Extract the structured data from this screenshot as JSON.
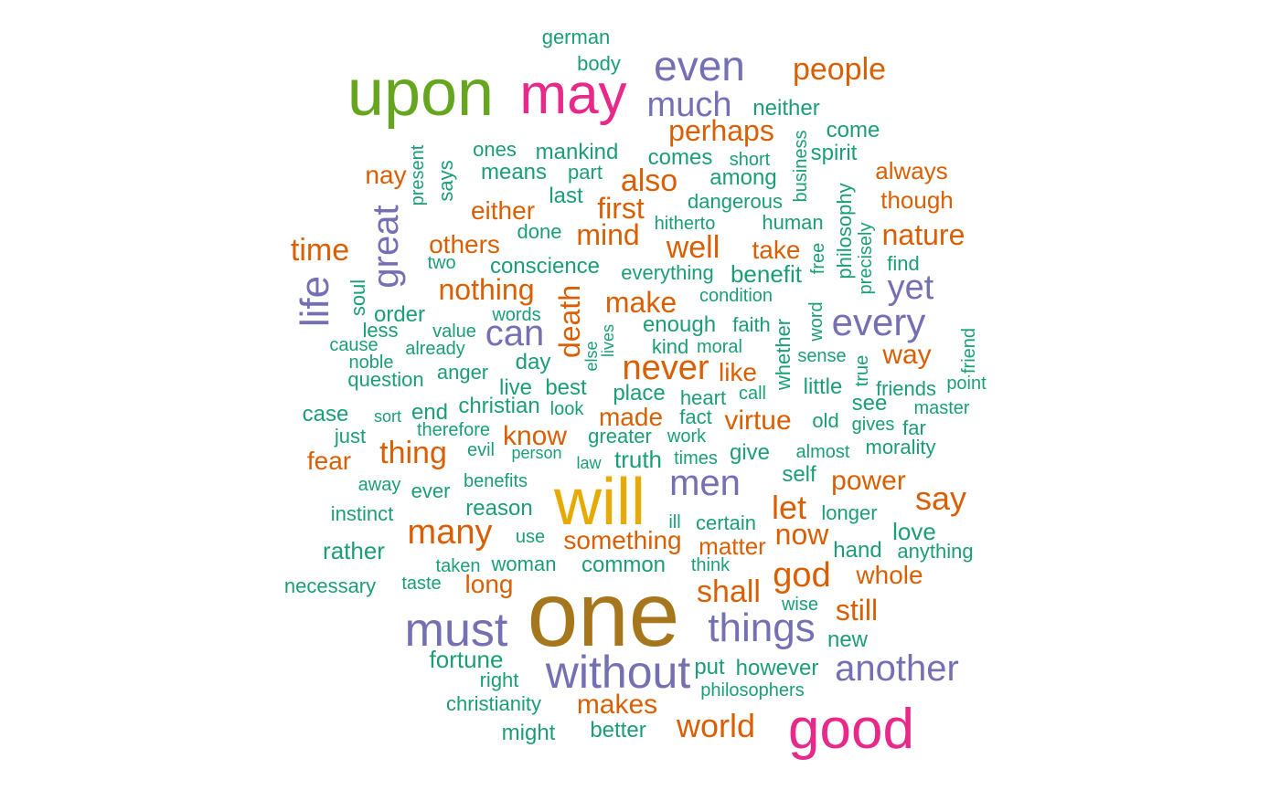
{
  "palette": {
    "green": "#1b9e77",
    "orange": "#d95f02",
    "purple": "#7570b3",
    "magenta": "#e7298a",
    "olive": "#66a61e",
    "gold": "#e6ab02",
    "brown": "#a6761d"
  },
  "words": [
    {
      "text": "german",
      "color": "green",
      "weight": 1,
      "vertical": false
    },
    {
      "text": "body",
      "color": "green",
      "weight": 1,
      "vertical": false
    },
    {
      "text": "even",
      "color": "purple",
      "weight": 4,
      "vertical": false
    },
    {
      "text": "people",
      "color": "orange",
      "weight": 2,
      "vertical": false
    },
    {
      "text": "upon",
      "color": "olive",
      "weight": 6,
      "vertical": false
    },
    {
      "text": "may",
      "color": "magenta",
      "weight": 5,
      "vertical": false
    },
    {
      "text": "much",
      "color": "purple",
      "weight": 3,
      "vertical": false
    },
    {
      "text": "neither",
      "color": "green",
      "weight": 1,
      "vertical": false
    },
    {
      "text": "perhaps",
      "color": "orange",
      "weight": 2,
      "vertical": false
    },
    {
      "text": "come",
      "color": "green",
      "weight": 1,
      "vertical": false
    },
    {
      "text": "ones",
      "color": "green",
      "weight": 1,
      "vertical": false
    },
    {
      "text": "mankind",
      "color": "green",
      "weight": 1,
      "vertical": false
    },
    {
      "text": "comes",
      "color": "green",
      "weight": 1,
      "vertical": false
    },
    {
      "text": "short",
      "color": "green",
      "weight": 1,
      "vertical": false
    },
    {
      "text": "business",
      "color": "green",
      "weight": 1,
      "vertical": true
    },
    {
      "text": "spirit",
      "color": "green",
      "weight": 1,
      "vertical": false
    },
    {
      "text": "nay",
      "color": "orange",
      "weight": 2,
      "vertical": false
    },
    {
      "text": "present",
      "color": "green",
      "weight": 1,
      "vertical": true
    },
    {
      "text": "says",
      "color": "green",
      "weight": 1,
      "vertical": true
    },
    {
      "text": "means",
      "color": "green",
      "weight": 1,
      "vertical": false
    },
    {
      "text": "part",
      "color": "green",
      "weight": 1,
      "vertical": false
    },
    {
      "text": "also",
      "color": "orange",
      "weight": 2,
      "vertical": false
    },
    {
      "text": "among",
      "color": "green",
      "weight": 1,
      "vertical": false
    },
    {
      "text": "always",
      "color": "orange",
      "weight": 2,
      "vertical": false
    },
    {
      "text": "philosophy",
      "color": "green",
      "weight": 1,
      "vertical": true
    },
    {
      "text": "though",
      "color": "orange",
      "weight": 2,
      "vertical": false
    },
    {
      "text": "great",
      "color": "purple",
      "weight": 3,
      "vertical": true
    },
    {
      "text": "either",
      "color": "orange",
      "weight": 2,
      "vertical": false
    },
    {
      "text": "last",
      "color": "green",
      "weight": 1,
      "vertical": false
    },
    {
      "text": "first",
      "color": "orange",
      "weight": 2,
      "vertical": false
    },
    {
      "text": "dangerous",
      "color": "green",
      "weight": 1,
      "vertical": false
    },
    {
      "text": "hitherto",
      "color": "green",
      "weight": 1,
      "vertical": false
    },
    {
      "text": "human",
      "color": "green",
      "weight": 1,
      "vertical": false
    },
    {
      "text": "precisely",
      "color": "green",
      "weight": 1,
      "vertical": true
    },
    {
      "text": "done",
      "color": "green",
      "weight": 1,
      "vertical": false
    },
    {
      "text": "mind",
      "color": "orange",
      "weight": 2,
      "vertical": false
    },
    {
      "text": "nature",
      "color": "orange",
      "weight": 2,
      "vertical": false
    },
    {
      "text": "time",
      "color": "orange",
      "weight": 2,
      "vertical": false
    },
    {
      "text": "others",
      "color": "orange",
      "weight": 2,
      "vertical": false
    },
    {
      "text": "well",
      "color": "orange",
      "weight": 2,
      "vertical": false
    },
    {
      "text": "take",
      "color": "orange",
      "weight": 2,
      "vertical": false
    },
    {
      "text": "free",
      "color": "green",
      "weight": 1,
      "vertical": true
    },
    {
      "text": "two",
      "color": "green",
      "weight": 1,
      "vertical": false
    },
    {
      "text": "conscience",
      "color": "green",
      "weight": 1,
      "vertical": false
    },
    {
      "text": "everything",
      "color": "green",
      "weight": 1,
      "vertical": false
    },
    {
      "text": "benefit",
      "color": "green",
      "weight": 1,
      "vertical": false
    },
    {
      "text": "find",
      "color": "green",
      "weight": 1,
      "vertical": false
    },
    {
      "text": "life",
      "color": "purple",
      "weight": 3,
      "vertical": true
    },
    {
      "text": "soul",
      "color": "green",
      "weight": 1,
      "vertical": true
    },
    {
      "text": "nothing",
      "color": "orange",
      "weight": 2,
      "vertical": false
    },
    {
      "text": "death",
      "color": "orange",
      "weight": 2,
      "vertical": true
    },
    {
      "text": "make",
      "color": "orange",
      "weight": 2,
      "vertical": false
    },
    {
      "text": "condition",
      "color": "green",
      "weight": 1,
      "vertical": false
    },
    {
      "text": "yet",
      "color": "purple",
      "weight": 3,
      "vertical": false
    },
    {
      "text": "order",
      "color": "green",
      "weight": 1,
      "vertical": false
    },
    {
      "text": "words",
      "color": "green",
      "weight": 1,
      "vertical": false
    },
    {
      "text": "enough",
      "color": "green",
      "weight": 1,
      "vertical": false
    },
    {
      "text": "faith",
      "color": "green",
      "weight": 1,
      "vertical": false
    },
    {
      "text": "whether",
      "color": "green",
      "weight": 1,
      "vertical": true
    },
    {
      "text": "word",
      "color": "green",
      "weight": 1,
      "vertical": true
    },
    {
      "text": "every",
      "color": "purple",
      "weight": 3,
      "vertical": false
    },
    {
      "text": "friend",
      "color": "green",
      "weight": 1,
      "vertical": true
    },
    {
      "text": "less",
      "color": "green",
      "weight": 1,
      "vertical": false
    },
    {
      "text": "value",
      "color": "green",
      "weight": 1,
      "vertical": false
    },
    {
      "text": "can",
      "color": "purple",
      "weight": 3,
      "vertical": false
    },
    {
      "text": "else",
      "color": "green",
      "weight": 1,
      "vertical": true
    },
    {
      "text": "lives",
      "color": "green",
      "weight": 1,
      "vertical": true
    },
    {
      "text": "kind",
      "color": "green",
      "weight": 1,
      "vertical": false
    },
    {
      "text": "moral",
      "color": "green",
      "weight": 1,
      "vertical": false
    },
    {
      "text": "sense",
      "color": "green",
      "weight": 1,
      "vertical": false
    },
    {
      "text": "cause",
      "color": "green",
      "weight": 1,
      "vertical": false
    },
    {
      "text": "already",
      "color": "green",
      "weight": 1,
      "vertical": false
    },
    {
      "text": "way",
      "color": "orange",
      "weight": 2,
      "vertical": false
    },
    {
      "text": "noble",
      "color": "green",
      "weight": 1,
      "vertical": false
    },
    {
      "text": "day",
      "color": "green",
      "weight": 1,
      "vertical": false
    },
    {
      "text": "never",
      "color": "orange",
      "weight": 3,
      "vertical": false
    },
    {
      "text": "like",
      "color": "orange",
      "weight": 2,
      "vertical": false
    },
    {
      "text": "true",
      "color": "green",
      "weight": 1,
      "vertical": true
    },
    {
      "text": "question",
      "color": "green",
      "weight": 1,
      "vertical": false
    },
    {
      "text": "anger",
      "color": "green",
      "weight": 1,
      "vertical": false
    },
    {
      "text": "live",
      "color": "green",
      "weight": 1,
      "vertical": false
    },
    {
      "text": "best",
      "color": "green",
      "weight": 1,
      "vertical": false
    },
    {
      "text": "place",
      "color": "green",
      "weight": 1,
      "vertical": false
    },
    {
      "text": "call",
      "color": "green",
      "weight": 1,
      "vertical": false
    },
    {
      "text": "little",
      "color": "green",
      "weight": 1,
      "vertical": false
    },
    {
      "text": "friends",
      "color": "green",
      "weight": 1,
      "vertical": false
    },
    {
      "text": "point",
      "color": "green",
      "weight": 1,
      "vertical": false
    },
    {
      "text": "christian",
      "color": "green",
      "weight": 1,
      "vertical": false
    },
    {
      "text": "look",
      "color": "green",
      "weight": 1,
      "vertical": false
    },
    {
      "text": "heart",
      "color": "green",
      "weight": 1,
      "vertical": false
    },
    {
      "text": "see",
      "color": "green",
      "weight": 1,
      "vertical": false
    },
    {
      "text": "master",
      "color": "green",
      "weight": 1,
      "vertical": false
    },
    {
      "text": "case",
      "color": "green",
      "weight": 1,
      "vertical": false
    },
    {
      "text": "sort",
      "color": "green",
      "weight": 1,
      "vertical": false
    },
    {
      "text": "end",
      "color": "green",
      "weight": 1,
      "vertical": false
    },
    {
      "text": "made",
      "color": "orange",
      "weight": 2,
      "vertical": false
    },
    {
      "text": "fact",
      "color": "green",
      "weight": 1,
      "vertical": false
    },
    {
      "text": "virtue",
      "color": "orange",
      "weight": 2,
      "vertical": false
    },
    {
      "text": "old",
      "color": "green",
      "weight": 1,
      "vertical": false
    },
    {
      "text": "gives",
      "color": "green",
      "weight": 1,
      "vertical": false
    },
    {
      "text": "far",
      "color": "green",
      "weight": 1,
      "vertical": false
    },
    {
      "text": "just",
      "color": "green",
      "weight": 1,
      "vertical": false
    },
    {
      "text": "therefore",
      "color": "green",
      "weight": 1,
      "vertical": false
    },
    {
      "text": "know",
      "color": "orange",
      "weight": 2,
      "vertical": false
    },
    {
      "text": "greater",
      "color": "green",
      "weight": 1,
      "vertical": false
    },
    {
      "text": "work",
      "color": "green",
      "weight": 1,
      "vertical": false
    },
    {
      "text": "morality",
      "color": "green",
      "weight": 1,
      "vertical": false
    },
    {
      "text": "thing",
      "color": "orange",
      "weight": 2,
      "vertical": false
    },
    {
      "text": "evil",
      "color": "green",
      "weight": 1,
      "vertical": false
    },
    {
      "text": "person",
      "color": "green",
      "weight": 1,
      "vertical": false
    },
    {
      "text": "truth",
      "color": "green",
      "weight": 1,
      "vertical": false
    },
    {
      "text": "give",
      "color": "green",
      "weight": 1,
      "vertical": false
    },
    {
      "text": "almost",
      "color": "green",
      "weight": 1,
      "vertical": false
    },
    {
      "text": "fear",
      "color": "orange",
      "weight": 2,
      "vertical": false
    },
    {
      "text": "law",
      "color": "green",
      "weight": 1,
      "vertical": false
    },
    {
      "text": "times",
      "color": "green",
      "weight": 1,
      "vertical": false
    },
    {
      "text": "self",
      "color": "green",
      "weight": 1,
      "vertical": false
    },
    {
      "text": "away",
      "color": "green",
      "weight": 1,
      "vertical": false
    },
    {
      "text": "benefits",
      "color": "green",
      "weight": 1,
      "vertical": false
    },
    {
      "text": "men",
      "color": "purple",
      "weight": 3,
      "vertical": false
    },
    {
      "text": "power",
      "color": "orange",
      "weight": 2,
      "vertical": false
    },
    {
      "text": "ever",
      "color": "green",
      "weight": 1,
      "vertical": false
    },
    {
      "text": "will",
      "color": "gold",
      "weight": 7,
      "vertical": false
    },
    {
      "text": "say",
      "color": "orange",
      "weight": 2,
      "vertical": false
    },
    {
      "text": "reason",
      "color": "green",
      "weight": 1,
      "vertical": false
    },
    {
      "text": "let",
      "color": "orange",
      "weight": 2,
      "vertical": false
    },
    {
      "text": "longer",
      "color": "green",
      "weight": 1,
      "vertical": false
    },
    {
      "text": "instinct",
      "color": "green",
      "weight": 1,
      "vertical": false
    },
    {
      "text": "ill",
      "color": "green",
      "weight": 1,
      "vertical": false
    },
    {
      "text": "certain",
      "color": "green",
      "weight": 1,
      "vertical": false
    },
    {
      "text": "many",
      "color": "orange",
      "weight": 3,
      "vertical": false
    },
    {
      "text": "now",
      "color": "orange",
      "weight": 2,
      "vertical": false
    },
    {
      "text": "love",
      "color": "green",
      "weight": 1,
      "vertical": false
    },
    {
      "text": "use",
      "color": "green",
      "weight": 1,
      "vertical": false
    },
    {
      "text": "something",
      "color": "orange",
      "weight": 2,
      "vertical": false
    },
    {
      "text": "matter",
      "color": "orange",
      "weight": 2,
      "vertical": false
    },
    {
      "text": "rather",
      "color": "green",
      "weight": 1,
      "vertical": false
    },
    {
      "text": "hand",
      "color": "green",
      "weight": 1,
      "vertical": false
    },
    {
      "text": "anything",
      "color": "green",
      "weight": 1,
      "vertical": false
    },
    {
      "text": "taken",
      "color": "green",
      "weight": 1,
      "vertical": false
    },
    {
      "text": "woman",
      "color": "green",
      "weight": 1,
      "vertical": false
    },
    {
      "text": "common",
      "color": "green",
      "weight": 1,
      "vertical": false
    },
    {
      "text": "think",
      "color": "green",
      "weight": 1,
      "vertical": false
    },
    {
      "text": "god",
      "color": "orange",
      "weight": 3,
      "vertical": false
    },
    {
      "text": "whole",
      "color": "orange",
      "weight": 2,
      "vertical": false
    },
    {
      "text": "necessary",
      "color": "green",
      "weight": 1,
      "vertical": false
    },
    {
      "text": "taste",
      "color": "green",
      "weight": 1,
      "vertical": false
    },
    {
      "text": "long",
      "color": "orange",
      "weight": 2,
      "vertical": false
    },
    {
      "text": "shall",
      "color": "orange",
      "weight": 2,
      "vertical": false
    },
    {
      "text": "one",
      "color": "brown",
      "weight": 8,
      "vertical": false
    },
    {
      "text": "wise",
      "color": "green",
      "weight": 1,
      "vertical": false
    },
    {
      "text": "still",
      "color": "orange",
      "weight": 2,
      "vertical": false
    },
    {
      "text": "must",
      "color": "purple",
      "weight": 4,
      "vertical": false
    },
    {
      "text": "things",
      "color": "purple",
      "weight": 3,
      "vertical": false
    },
    {
      "text": "new",
      "color": "green",
      "weight": 1,
      "vertical": false
    },
    {
      "text": "fortune",
      "color": "green",
      "weight": 1,
      "vertical": false
    },
    {
      "text": "without",
      "color": "purple",
      "weight": 4,
      "vertical": false
    },
    {
      "text": "put",
      "color": "green",
      "weight": 1,
      "vertical": false
    },
    {
      "text": "however",
      "color": "green",
      "weight": 1,
      "vertical": false
    },
    {
      "text": "another",
      "color": "purple",
      "weight": 3,
      "vertical": false
    },
    {
      "text": "right",
      "color": "green",
      "weight": 1,
      "vertical": false
    },
    {
      "text": "philosophers",
      "color": "green",
      "weight": 1,
      "vertical": false
    },
    {
      "text": "christianity",
      "color": "green",
      "weight": 1,
      "vertical": false
    },
    {
      "text": "makes",
      "color": "orange",
      "weight": 2,
      "vertical": false
    },
    {
      "text": "world",
      "color": "orange",
      "weight": 2,
      "vertical": false
    },
    {
      "text": "good",
      "color": "magenta",
      "weight": 5,
      "vertical": false
    },
    {
      "text": "might",
      "color": "green",
      "weight": 1,
      "vertical": false
    },
    {
      "text": "better",
      "color": "green",
      "weight": 1,
      "vertical": false
    }
  ]
}
